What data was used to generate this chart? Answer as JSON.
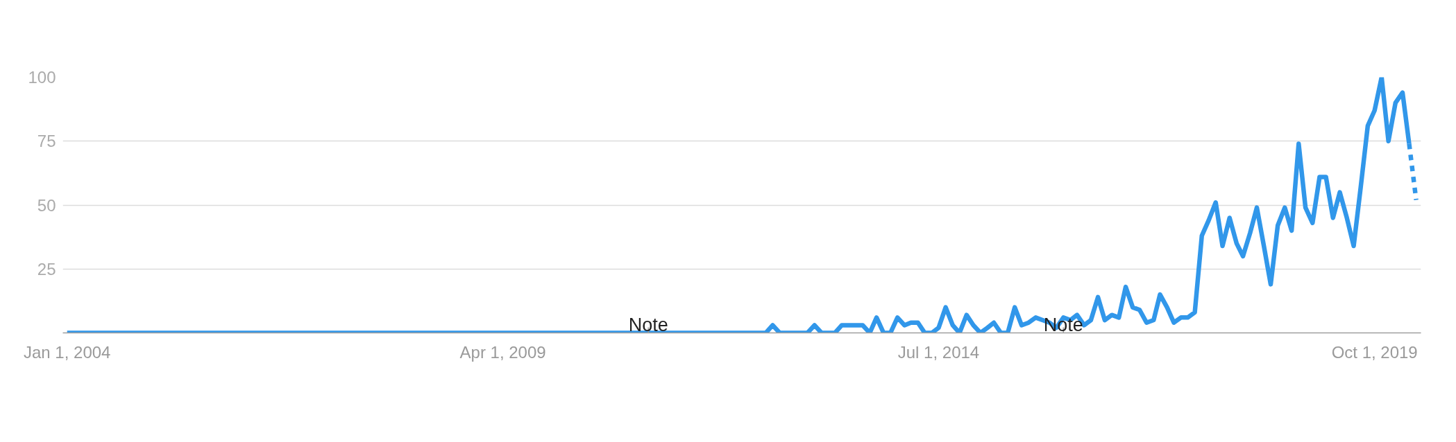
{
  "chart_data": {
    "type": "line",
    "x": [
      "2004-01",
      "2004-02",
      "2004-03",
      "2004-04",
      "2004-05",
      "2004-06",
      "2004-07",
      "2004-08",
      "2004-09",
      "2004-10",
      "2004-11",
      "2004-12",
      "2005-01",
      "2005-02",
      "2005-03",
      "2005-04",
      "2005-05",
      "2005-06",
      "2005-07",
      "2005-08",
      "2005-09",
      "2005-10",
      "2005-11",
      "2005-12",
      "2006-01",
      "2006-02",
      "2006-03",
      "2006-04",
      "2006-05",
      "2006-06",
      "2006-07",
      "2006-08",
      "2006-09",
      "2006-10",
      "2006-11",
      "2006-12",
      "2007-01",
      "2007-02",
      "2007-03",
      "2007-04",
      "2007-05",
      "2007-06",
      "2007-07",
      "2007-08",
      "2007-09",
      "2007-10",
      "2007-11",
      "2007-12",
      "2008-01",
      "2008-02",
      "2008-03",
      "2008-04",
      "2008-05",
      "2008-06",
      "2008-07",
      "2008-08",
      "2008-09",
      "2008-10",
      "2008-11",
      "2008-12",
      "2009-01",
      "2009-02",
      "2009-03",
      "2009-04",
      "2009-05",
      "2009-06",
      "2009-07",
      "2009-08",
      "2009-09",
      "2009-10",
      "2009-11",
      "2009-12",
      "2010-01",
      "2010-02",
      "2010-03",
      "2010-04",
      "2010-05",
      "2010-06",
      "2010-07",
      "2010-08",
      "2010-09",
      "2010-10",
      "2010-11",
      "2010-12",
      "2011-01",
      "2011-02",
      "2011-03",
      "2011-04",
      "2011-05",
      "2011-06",
      "2011-07",
      "2011-08",
      "2011-09",
      "2011-10",
      "2011-11",
      "2011-12",
      "2012-01",
      "2012-02",
      "2012-03",
      "2012-04",
      "2012-05",
      "2012-06",
      "2012-07",
      "2012-08",
      "2012-09",
      "2012-10",
      "2012-11",
      "2012-12",
      "2013-01",
      "2013-02",
      "2013-03",
      "2013-04",
      "2013-05",
      "2013-06",
      "2013-07",
      "2013-08",
      "2013-09",
      "2013-10",
      "2013-11",
      "2013-12",
      "2014-01",
      "2014-02",
      "2014-03",
      "2014-04",
      "2014-05",
      "2014-06",
      "2014-07",
      "2014-08",
      "2014-09",
      "2014-10",
      "2014-11",
      "2014-12",
      "2015-01",
      "2015-02",
      "2015-03",
      "2015-04",
      "2015-05",
      "2015-06",
      "2015-07",
      "2015-08",
      "2015-09",
      "2015-10",
      "2015-11",
      "2015-12",
      "2016-01",
      "2016-02",
      "2016-03",
      "2016-04",
      "2016-05",
      "2016-06",
      "2016-07",
      "2016-08",
      "2016-09",
      "2016-10",
      "2016-11",
      "2016-12",
      "2017-01",
      "2017-02",
      "2017-03",
      "2017-04",
      "2017-05",
      "2017-06",
      "2017-07",
      "2017-08",
      "2017-09",
      "2017-10",
      "2017-11",
      "2017-12",
      "2018-01",
      "2018-02",
      "2018-03",
      "2018-04",
      "2018-05",
      "2018-06",
      "2018-07",
      "2018-08",
      "2018-09",
      "2018-10",
      "2018-11",
      "2018-12",
      "2019-01",
      "2019-02",
      "2019-03",
      "2019-04",
      "2019-05",
      "2019-06",
      "2019-07",
      "2019-08",
      "2019-09",
      "2019-10",
      "2019-11",
      "2019-12",
      "2020-01",
      "2020-02",
      "2020-03"
    ],
    "series": [
      {
        "color": "#3197ea",
        "values": [
          0,
          0,
          0,
          0,
          0,
          0,
          0,
          0,
          0,
          0,
          0,
          0,
          0,
          0,
          0,
          0,
          0,
          0,
          0,
          0,
          0,
          0,
          0,
          0,
          0,
          0,
          0,
          0,
          0,
          0,
          0,
          0,
          0,
          0,
          0,
          0,
          0,
          0,
          0,
          0,
          0,
          0,
          0,
          0,
          0,
          0,
          0,
          0,
          0,
          0,
          0,
          0,
          0,
          0,
          0,
          0,
          0,
          0,
          0,
          0,
          0,
          0,
          0,
          0,
          0,
          0,
          0,
          0,
          0,
          0,
          0,
          0,
          0,
          0,
          0,
          0,
          0,
          0,
          0,
          0,
          0,
          0,
          0,
          0,
          0,
          0,
          0,
          0,
          0,
          0,
          0,
          0,
          0,
          0,
          0,
          0,
          0,
          0,
          0,
          0,
          0,
          0,
          3,
          0,
          0,
          0,
          0,
          0,
          3,
          0,
          0,
          0,
          3,
          3,
          3,
          3,
          0,
          6,
          0,
          0,
          6,
          3,
          4,
          4,
          0,
          0,
          2,
          10,
          3,
          0,
          7,
          3,
          0,
          2,
          4,
          0,
          0,
          10,
          3,
          4,
          6,
          5,
          4,
          2,
          6,
          5,
          7,
          3,
          5,
          14,
          5,
          7,
          6,
          18,
          10,
          9,
          4,
          5,
          15,
          10,
          4,
          6,
          6,
          8,
          38,
          44,
          51,
          34,
          45,
          35,
          30,
          39,
          49,
          34,
          19,
          42,
          49,
          40,
          74,
          49,
          43,
          61,
          61,
          45,
          55,
          45,
          34,
          57,
          81,
          87,
          100,
          75,
          90,
          94,
          74
        ]
      },
      {
        "color": "#3197ea",
        "x": [
          "2020-03",
          "2020-04"
        ],
        "values": [
          74,
          52
        ],
        "line_style": "dotted"
      }
    ],
    "line_style": "solid",
    "xlim": [
      "2003-12-13",
      "2020-04-22"
    ],
    "xticks": [
      {
        "value": "2004-01-01",
        "label": "Jan 1, 2004"
      },
      {
        "value": "2009-04-01",
        "label": "Apr 1, 2009"
      },
      {
        "value": "2014-07-01",
        "label": "Jul 1, 2014"
      },
      {
        "value": "2019-10-01",
        "label": "Oct 1, 2019"
      }
    ],
    "ylim": [
      0,
      100
    ],
    "yticks": [
      25,
      50,
      75,
      100
    ],
    "grid": "y",
    "annotations": [
      {
        "text": "Note",
        "x": "2011-01-01",
        "y": 0
      },
      {
        "text": "Note",
        "x": "2016-01-01"
      }
    ]
  }
}
